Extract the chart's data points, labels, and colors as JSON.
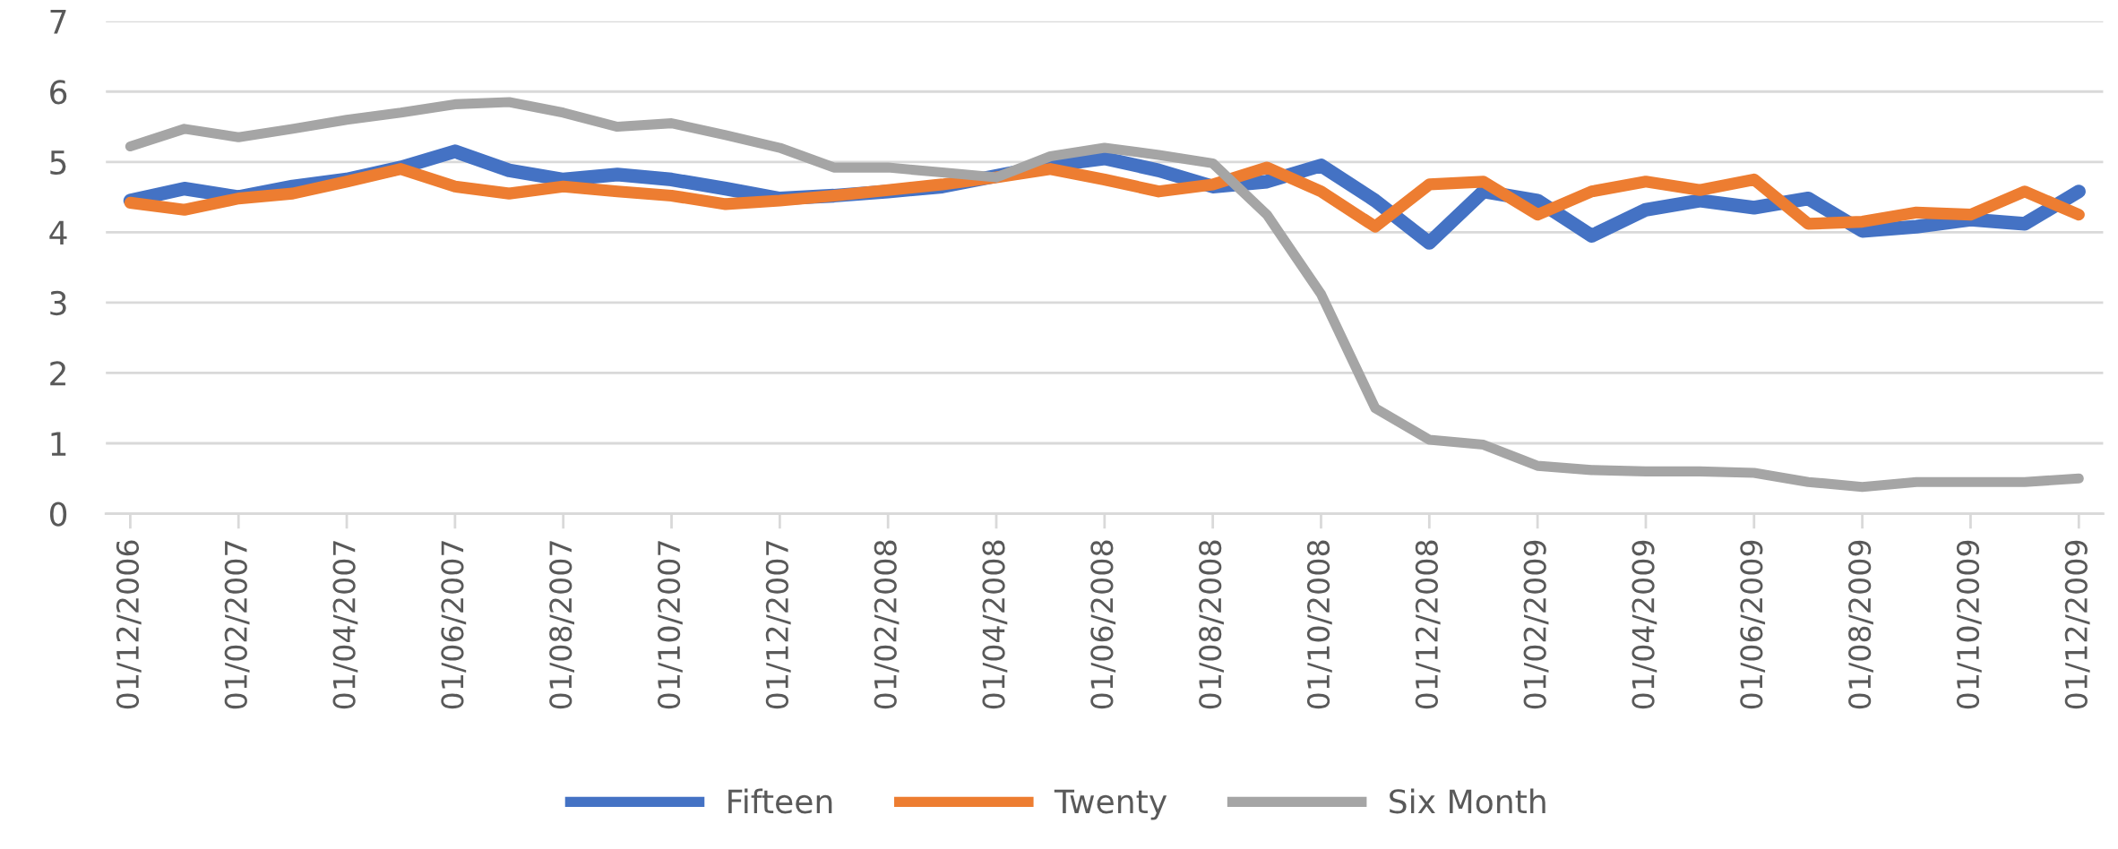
{
  "chart_data": {
    "type": "line",
    "categories": [
      "01/12/2006",
      null,
      "01/02/2007",
      null,
      "01/04/2007",
      null,
      "01/06/2007",
      null,
      "01/08/2007",
      null,
      "01/10/2007",
      null,
      "01/12/2007",
      null,
      "01/02/2008",
      null,
      "01/04/2008",
      null,
      "01/06/2008",
      null,
      "01/08/2008",
      null,
      "01/10/2008",
      null,
      "01/12/2008",
      null,
      "01/02/2009",
      null,
      "01/04/2009",
      null,
      "01/06/2009",
      null,
      "01/08/2009",
      null,
      "01/10/2009",
      null,
      "01/12/2009"
    ],
    "series": [
      {
        "name": "Fifteen",
        "color": "#4472c4",
        "values": [
          4.45,
          4.62,
          4.5,
          4.65,
          4.75,
          4.92,
          5.15,
          4.88,
          4.75,
          4.82,
          4.75,
          4.62,
          4.48,
          4.52,
          4.58,
          4.65,
          4.8,
          4.95,
          5.05,
          4.88,
          4.65,
          4.72,
          4.95,
          4.45,
          3.85,
          4.58,
          4.45,
          3.95,
          4.32,
          4.45,
          4.35,
          4.48,
          4.02,
          4.08,
          4.18,
          4.12,
          4.58
        ]
      },
      {
        "name": "Twenty",
        "color": "#ed7d31",
        "values": [
          4.42,
          4.32,
          4.48,
          4.55,
          4.72,
          4.9,
          4.65,
          4.55,
          4.65,
          4.58,
          4.52,
          4.4,
          4.45,
          4.52,
          4.6,
          4.68,
          4.78,
          4.9,
          4.75,
          4.58,
          4.68,
          4.92,
          4.58,
          4.08,
          4.68,
          4.72,
          4.25,
          4.58,
          4.72,
          4.6,
          4.75,
          4.12,
          4.15,
          4.28,
          4.25,
          4.58,
          4.25
        ]
      },
      {
        "name": "Six Month",
        "color": "#a5a5a5",
        "values": [
          5.22,
          5.47,
          5.35,
          5.47,
          5.6,
          5.7,
          5.82,
          5.85,
          5.7,
          5.5,
          5.55,
          5.38,
          5.2,
          4.92,
          4.92,
          4.85,
          4.78,
          5.08,
          5.2,
          5.1,
          4.98,
          4.25,
          3.12,
          1.5,
          1.05,
          0.98,
          0.68,
          0.62,
          0.6,
          0.6,
          0.58,
          0.45,
          0.38,
          0.45,
          0.45,
          0.45,
          0.5
        ]
      }
    ],
    "ylim": [
      0,
      7
    ],
    "yticks": [
      0,
      1,
      2,
      3,
      4,
      5,
      6,
      7
    ],
    "grid": "y",
    "legend": "bottom",
    "line_style": "solid"
  }
}
